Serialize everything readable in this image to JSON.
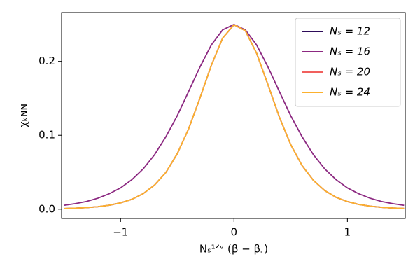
{
  "chart_data": {
    "type": "line",
    "x_label": "Nₛ¹ᐟᵛ (β − β꜀)",
    "y_label": "χₖɴɴ",
    "x": [
      -1.5,
      -1.4,
      -1.3,
      -1.2,
      -1.1,
      -1.0,
      -0.9,
      -0.8,
      -0.7,
      -0.6,
      -0.5,
      -0.4,
      -0.3,
      -0.2,
      -0.1,
      0.0,
      0.1,
      0.2,
      0.3,
      0.4,
      0.5,
      0.6,
      0.7,
      0.8,
      0.9,
      1.0,
      1.1,
      1.2,
      1.3,
      1.4,
      1.5
    ],
    "series": [
      {
        "name": "Nₛ = 12",
        "color": "#2d0b59",
        "values": [
          0.00085,
          0.00135,
          0.00215,
          0.0034,
          0.0054,
          0.0086,
          0.0134,
          0.0211,
          0.0328,
          0.0498,
          0.0751,
          0.1087,
          0.1504,
          0.1944,
          0.2315,
          0.2495,
          0.2415,
          0.2108,
          0.1682,
          0.1247,
          0.0875,
          0.0591,
          0.0391,
          0.0252,
          0.0161,
          0.0103,
          0.0065,
          0.0041,
          0.0026,
          0.0016,
          0.001
        ]
      },
      {
        "name": "Nₛ = 16",
        "color": "#8c2981",
        "values": [
          0.0053,
          0.0075,
          0.0105,
          0.0149,
          0.0209,
          0.0289,
          0.04,
          0.0546,
          0.0738,
          0.0982,
          0.1266,
          0.1592,
          0.1923,
          0.2221,
          0.2426,
          0.25,
          0.2426,
          0.2221,
          0.1923,
          0.1592,
          0.1266,
          0.0982,
          0.0738,
          0.0546,
          0.04,
          0.0289,
          0.0209,
          0.0149,
          0.0105,
          0.0075,
          0.0053
        ]
      },
      {
        "name": "Nₛ = 20",
        "color": "#f1605d",
        "values": [
          0.00085,
          0.00135,
          0.00215,
          0.0034,
          0.0054,
          0.0086,
          0.0134,
          0.0211,
          0.0328,
          0.0498,
          0.0751,
          0.1087,
          0.1504,
          0.1944,
          0.2315,
          0.2495,
          0.2415,
          0.2108,
          0.1682,
          0.1247,
          0.0875,
          0.0591,
          0.0391,
          0.0252,
          0.0161,
          0.0103,
          0.0065,
          0.0041,
          0.0026,
          0.0016,
          0.001
        ]
      },
      {
        "name": "Nₛ = 24",
        "color": "#fcb12e",
        "values": [
          0.00085,
          0.00135,
          0.00215,
          0.0034,
          0.0054,
          0.0086,
          0.0134,
          0.0211,
          0.0328,
          0.0498,
          0.0751,
          0.1087,
          0.1504,
          0.1944,
          0.2315,
          0.2495,
          0.2415,
          0.2108,
          0.1682,
          0.1247,
          0.0875,
          0.0591,
          0.0391,
          0.0252,
          0.0161,
          0.0103,
          0.0065,
          0.0041,
          0.0026,
          0.0016,
          0.001
        ]
      }
    ],
    "xlim": [
      -1.52,
      1.51
    ],
    "ylim": [
      -0.0125,
      0.266
    ],
    "xticks": [
      {
        "value": -1,
        "label": "−1"
      },
      0,
      1
    ],
    "yticks": [
      {
        "value": 0,
        "label": "0.0"
      },
      0.1,
      0.2
    ],
    "grid": false,
    "legend": "upper right"
  }
}
